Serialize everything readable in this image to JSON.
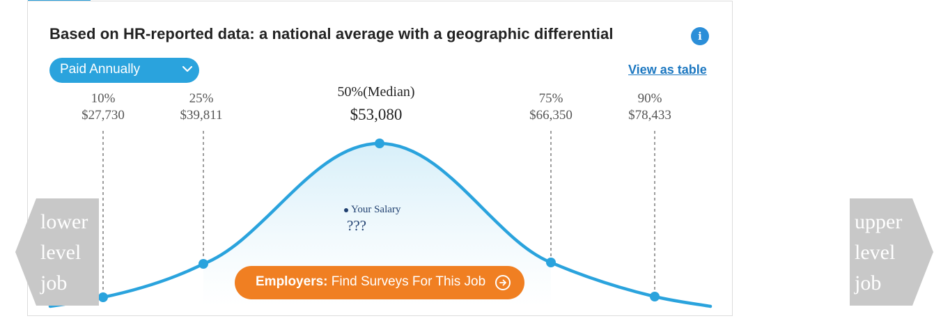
{
  "header": {
    "title": "Based on HR-reported data: a national average with a geographic differential",
    "info_icon": "info-icon"
  },
  "controls": {
    "pay_period": "Paid Annually",
    "view_table": "View as table"
  },
  "percentiles": [
    {
      "label": "10%",
      "value": "$27,730"
    },
    {
      "label": "25%",
      "value": "$39,811"
    },
    {
      "label": "50%(Median)",
      "value": "$53,080"
    },
    {
      "label": "75%",
      "value": "$66,350"
    },
    {
      "label": "90%",
      "value": "$78,433"
    }
  ],
  "your_salary": {
    "label": "Your Salary",
    "value": "???"
  },
  "cta": {
    "bold": "Employers:",
    "text": "Find Surveys For This Job",
    "icon": "arrow-right-circle-icon"
  },
  "nav": {
    "lower": [
      "lower",
      "level",
      "job"
    ],
    "upper": [
      "upper",
      "level",
      "job"
    ]
  },
  "colors": {
    "curve": "#2aa3dd",
    "accent": "#2aa3dd",
    "cta": "#f07f22",
    "nav_bg": "#c8c8c8",
    "link": "#1d78c1"
  }
}
